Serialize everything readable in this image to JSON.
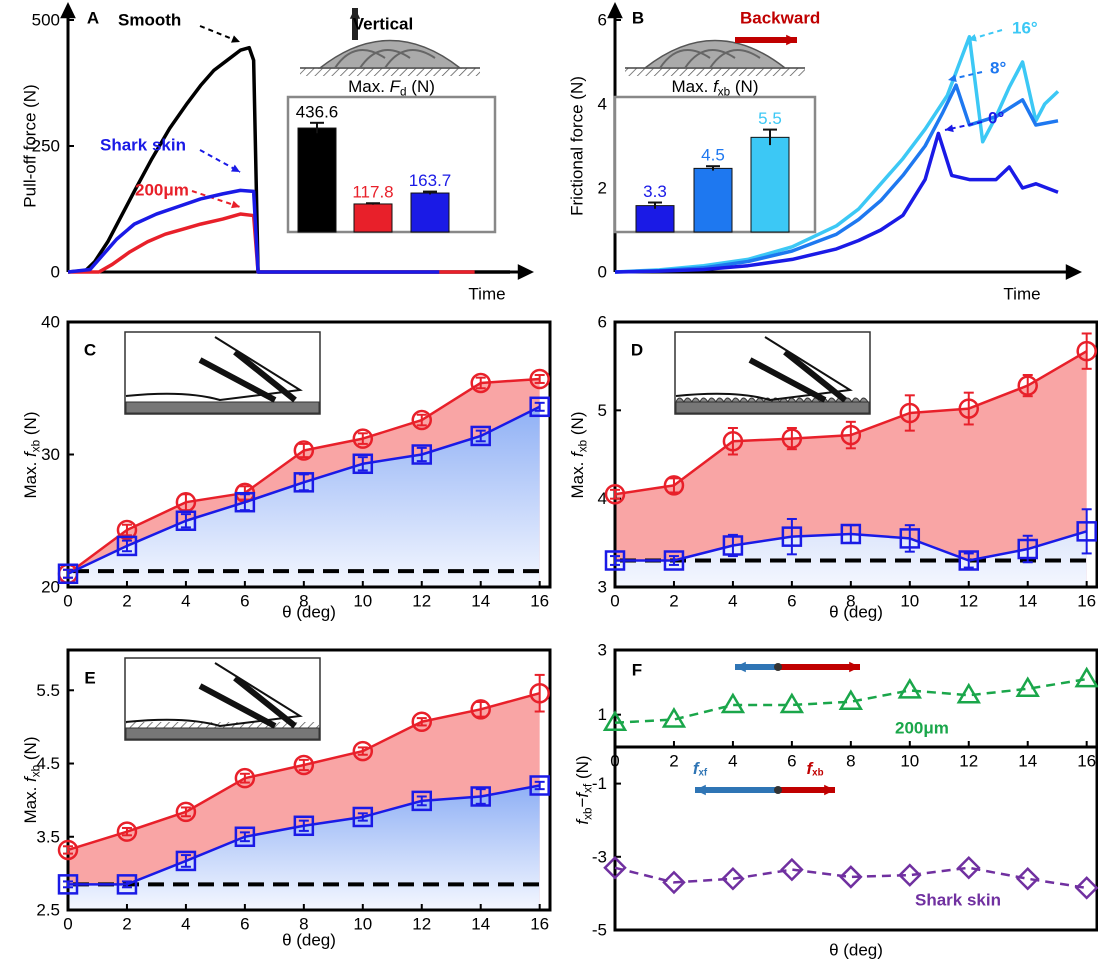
{
  "chart_data": [
    {
      "type": "line",
      "panel_label": "A",
      "ylabel": "Pull-off force (N)",
      "xlabel": "Time",
      "xlim": [
        0,
        100
      ],
      "ylim": [
        0,
        500
      ],
      "yticks": [
        0,
        250,
        500
      ],
      "series": [
        {
          "name": "Smooth",
          "color": "#000000",
          "x": [
            0,
            4,
            6,
            9,
            12,
            15,
            19,
            23,
            27,
            30,
            33,
            36,
            39,
            41,
            42,
            43,
            44,
            100
          ],
          "values": [
            0,
            3,
            20,
            60,
            110,
            160,
            225,
            285,
            335,
            370,
            400,
            420,
            440,
            445,
            420,
            0,
            0,
            0
          ]
        },
        {
          "name": "200μm",
          "color": "#e8202a",
          "x": [
            0,
            7,
            10,
            14,
            18,
            22,
            26,
            30,
            35,
            39,
            42,
            43,
            44,
            92
          ],
          "values": [
            0,
            0,
            15,
            40,
            60,
            75,
            85,
            95,
            105,
            115,
            112,
            0,
            0,
            0
          ]
        },
        {
          "name": "Shark skin",
          "color": "#1a1ae6",
          "x": [
            0,
            5,
            8,
            11,
            15,
            20,
            25,
            30,
            35,
            39,
            42,
            43,
            44,
            84
          ],
          "values": [
            0,
            5,
            35,
            65,
            95,
            115,
            130,
            145,
            155,
            162,
            160,
            0,
            0,
            0
          ]
        }
      ]
    },
    {
      "type": "bar",
      "title": [
        "Max. ",
        "F",
        "d",
        " (N)"
      ],
      "annotation": "Vertical",
      "ylim": [
        0,
        567
      ],
      "values": [
        436.6,
        117.8,
        163.7
      ],
      "errors": [
        22,
        3,
        6
      ],
      "colors": [
        "#000000",
        "#e8202a",
        "#1a1ae6"
      ]
    },
    {
      "type": "line",
      "panel_label": "B",
      "ylabel": "Frictional force (N)",
      "xlabel": "Time",
      "xlim": [
        0,
        100
      ],
      "ylim": [
        0,
        6
      ],
      "yticks": [
        0,
        2,
        4,
        6
      ],
      "series": [
        {
          "name": "16°",
          "color": "#3cc8f5",
          "x": [
            0,
            10,
            20,
            30,
            40,
            50,
            55,
            60,
            65,
            70,
            75,
            80,
            83,
            86,
            89,
            92,
            95,
            97,
            100
          ],
          "values": [
            0,
            0.05,
            0.15,
            0.3,
            0.6,
            1.1,
            1.5,
            2.1,
            2.7,
            3.4,
            4.2,
            5.6,
            3.1,
            3.7,
            4.4,
            5.0,
            3.6,
            4.0,
            4.3
          ]
        },
        {
          "name": "8°",
          "color": "#1e78f0",
          "x": [
            0,
            10,
            20,
            30,
            40,
            50,
            55,
            60,
            65,
            70,
            74,
            77,
            80,
            83,
            86,
            89,
            92,
            95,
            100
          ],
          "values": [
            0,
            0.03,
            0.1,
            0.25,
            0.5,
            0.9,
            1.25,
            1.7,
            2.3,
            3.0,
            3.8,
            4.45,
            3.5,
            3.6,
            3.7,
            3.9,
            4.1,
            3.5,
            3.6
          ]
        },
        {
          "name": "0°",
          "color": "#1a1ae6",
          "x": [
            0,
            10,
            20,
            30,
            40,
            50,
            55,
            60,
            65,
            70,
            73,
            76,
            80,
            83,
            86,
            89,
            92,
            95,
            100
          ],
          "values": [
            0,
            0.02,
            0.06,
            0.15,
            0.3,
            0.55,
            0.75,
            1.0,
            1.35,
            2.2,
            3.3,
            2.3,
            2.2,
            2.2,
            2.2,
            2.5,
            2.0,
            2.1,
            1.9
          ]
        }
      ]
    },
    {
      "type": "bar",
      "title": [
        "Max. ",
        "f",
        "xb",
        " (N)"
      ],
      "annotation": "Backward",
      "ylim": [
        2.45,
        6.8
      ],
      "values": [
        3.3,
        4.5,
        5.5
      ],
      "errors": [
        0.1,
        0.07,
        0.25
      ],
      "colors": [
        "#1a1ae6",
        "#1e78f0",
        "#3cc8f5"
      ]
    },
    {
      "type": "line",
      "panel_label": "C",
      "ylabel": [
        "Max. ",
        "f",
        "xb",
        " (N)"
      ],
      "xlabel": "θ (deg)",
      "xlim": [
        0,
        16.35
      ],
      "ylim": [
        20,
        40
      ],
      "yticks": [
        20,
        30,
        40
      ],
      "xticks": [
        0,
        2,
        4,
        6,
        8,
        10,
        12,
        14,
        16
      ],
      "hline": 21.2,
      "x": [
        0,
        2,
        4,
        6,
        8,
        10,
        12,
        14,
        16
      ],
      "series": [
        {
          "color": "#e8202a",
          "marker": "circle",
          "fill": "#f9a5a5",
          "values": [
            21,
            24.3,
            26.4,
            27.1,
            30.3,
            31.2,
            32.6,
            35.4,
            35.7
          ],
          "errors": [
            0.3,
            0.4,
            0.6,
            0.5,
            0.5,
            0.4,
            0.4,
            0.4,
            0.3
          ]
        },
        {
          "color": "#1a1ae6",
          "marker": "square",
          "fill": "#8fb0f5",
          "fill_fade": true,
          "values": [
            21,
            23.1,
            25,
            26.4,
            27.9,
            29.3,
            30,
            31.4,
            33.6
          ],
          "errors": [
            0.3,
            0.4,
            0.5,
            0.6,
            0.6,
            0.5,
            0.5,
            0.4,
            0.3
          ]
        }
      ]
    },
    {
      "type": "line",
      "panel_label": "D",
      "ylabel": [
        "Max. ",
        "f",
        "xb",
        " (N)"
      ],
      "xlabel": "θ (deg)",
      "xlim": [
        0,
        16.35
      ],
      "ylim": [
        3,
        6
      ],
      "yticks": [
        3,
        4,
        5,
        6
      ],
      "xticks": [
        0,
        2,
        4,
        6,
        8,
        10,
        12,
        14,
        16
      ],
      "hline": 3.3,
      "x": [
        0,
        2,
        4,
        6,
        8,
        10,
        12,
        14,
        16
      ],
      "series": [
        {
          "color": "#e8202a",
          "marker": "circle",
          "fill": "#f9a5a5",
          "values": [
            4.05,
            4.15,
            4.65,
            4.68,
            4.72,
            4.97,
            5.02,
            5.28,
            5.67
          ],
          "errors": [
            0.05,
            0.08,
            0.15,
            0.12,
            0.15,
            0.2,
            0.18,
            0.12,
            0.2
          ]
        },
        {
          "color": "#1a1ae6",
          "marker": "square",
          "fill": "#dde6fb",
          "fill_fade": true,
          "values": [
            3.3,
            3.3,
            3.47,
            3.57,
            3.6,
            3.55,
            3.3,
            3.43,
            3.63
          ],
          "errors": [
            0.05,
            0.05,
            0.12,
            0.2,
            0.1,
            0.15,
            0.08,
            0.15,
            0.25
          ]
        }
      ]
    },
    {
      "type": "line",
      "panel_label": "E",
      "ylabel": [
        "Max. ",
        "f",
        "xb",
        " (N)"
      ],
      "xlabel": "θ (deg)",
      "xlim": [
        0,
        16.35
      ],
      "ylim": [
        2.5,
        6.05
      ],
      "yticks": [
        2.5,
        3.5,
        4.5,
        5.5
      ],
      "xticks": [
        0,
        2,
        4,
        6,
        8,
        10,
        12,
        14,
        16
      ],
      "hline": 2.85,
      "x": [
        0,
        2,
        4,
        6,
        8,
        10,
        12,
        14,
        16
      ],
      "series": [
        {
          "color": "#e8202a",
          "marker": "circle",
          "fill": "#f9a5a5",
          "values": [
            3.32,
            3.57,
            3.84,
            4.3,
            4.48,
            4.67,
            5.07,
            5.24,
            5.46
          ],
          "errors": [
            0.05,
            0.05,
            0.06,
            0.06,
            0.07,
            0.05,
            0.05,
            0.1,
            0.25
          ]
        },
        {
          "color": "#1a1ae6",
          "marker": "square",
          "fill": "#8fb0f5",
          "fill_fade": true,
          "values": [
            2.85,
            2.85,
            3.17,
            3.5,
            3.65,
            3.77,
            3.99,
            4.05,
            4.2
          ],
          "errors": [
            0.04,
            0.04,
            0.08,
            0.06,
            0.07,
            0.05,
            0.06,
            0.1,
            0.05
          ]
        }
      ]
    },
    {
      "type": "line",
      "panel_label": "F",
      "xlim": [
        0,
        16.35
      ],
      "ylim": [
        0,
        3
      ],
      "yticks": [
        1,
        3
      ],
      "x": [
        0,
        2,
        4,
        6,
        8,
        10,
        12,
        14,
        16
      ],
      "series": [
        {
          "name": "200μm",
          "color": "#1aa64a",
          "marker": "triangle",
          "linestyle": "dashed",
          "values": [
            0.75,
            0.85,
            1.3,
            1.3,
            1.4,
            1.75,
            1.6,
            1.8,
            2.1
          ]
        }
      ]
    },
    {
      "type": "line",
      "ylabel": [
        "f",
        "xb",
        "−",
        "f",
        "xf",
        " (N)"
      ],
      "xlabel": "θ (deg)",
      "xlim": [
        0,
        16.35
      ],
      "ylim": [
        -5,
        0
      ],
      "yticks": [
        -1,
        -3,
        -5
      ],
      "xticks": [
        0,
        2,
        4,
        6,
        8,
        10,
        12,
        14,
        16
      ],
      "x": [
        0,
        2,
        4,
        6,
        8,
        10,
        12,
        14,
        16
      ],
      "arrow_labels": [
        [
          "f",
          "xf"
        ],
        [
          "f",
          "xb"
        ]
      ],
      "series": [
        {
          "name": "Shark skin",
          "color": "#7030a0",
          "marker": "diamond",
          "linestyle": "dashed",
          "values": [
            -3.3,
            -3.7,
            -3.6,
            -3.35,
            -3.55,
            -3.5,
            -3.3,
            -3.6,
            -3.85
          ]
        }
      ]
    }
  ]
}
